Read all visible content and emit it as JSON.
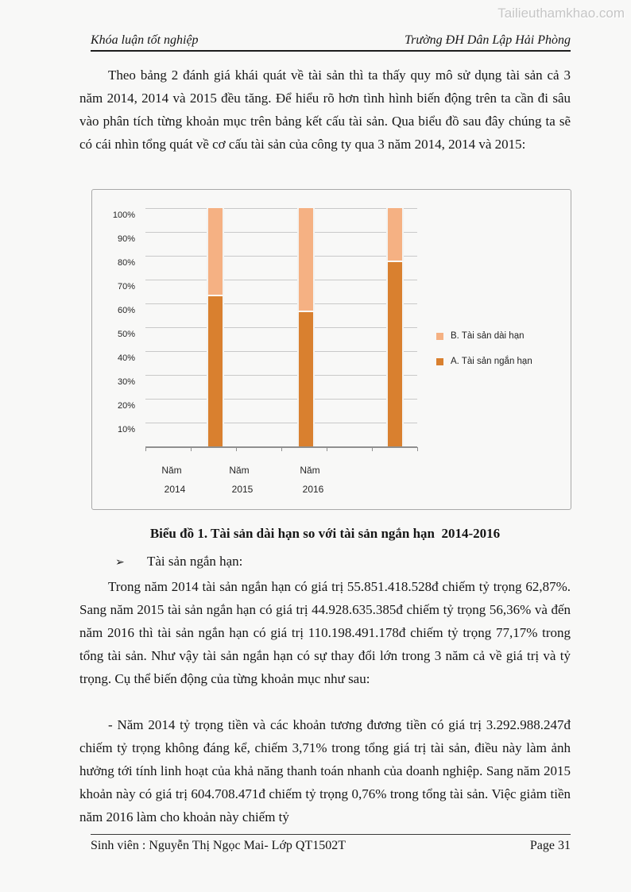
{
  "watermark": "Tailieuthamkhao.com",
  "header": {
    "left": "Khóa luận tốt nghiệp",
    "right": "Trường ĐH Dân Lập Hải Phòng"
  },
  "body": {
    "para_intro": "Theo bảng 2 đánh giá khái quát về tài sản thì ta thấy quy mô sử dụng tài sản cả 3 năm 2014, 2014 và 2015 đều tăng. Để hiểu rõ hơn tình hình biến động trên ta cần đi sâu vào phân tích từng khoản mục trên bảng kết cấu tài sản. Qua biểu đồ sau đây chúng ta sẽ có cái nhìn tổng quát về cơ cấu tài sản của công ty qua 3 năm 2014, 2014 và 2015:",
    "chart_caption": "Biểu đồ 1. Tài sản dài hạn so với tài sản ngắn hạn  2014-2016",
    "bullet_marker": "➢",
    "bullet_text": "Tài sản ngắn hạn:",
    "para_shortterm": "Trong năm 2014 tài sản ngắn hạn có giá trị 55.851.418.528đ chiếm tỷ trọng 62,87%. Sang năm 2015 tài sản ngắn hạn có giá trị 44.928.635.385đ chiếm tỷ trọng 56,36% và đến năm 2016 thì tài sản ngắn hạn có giá trị 110.198.491.178đ chiếm tỷ trọng 77,17% trong tổng tài sản. Như vậy tài sản ngắn hạn có sự thay đổi lớn trong 3 năm cả về giá trị và tỷ trọng. Cụ thể biến động của từng khoản mục như sau:",
    "para_cash": "- Năm 2014 tỷ trọng tiền và các khoản tương đương tiền có giá trị 3.292.988.247đ chiếm tỷ trọng không đáng kể, chiếm 3,71% trong tổng giá trị tài sản, điều này làm ảnh hưởng tới tính linh hoạt của khả năng thanh toán nhanh của doanh nghiệp. Sang năm 2015 khoản này có giá trị 604.708.471đ chiếm tỷ trọng 0,76% trong tổng tài sản. Việc giảm tiền năm 2016 làm cho khoản này chiếm tỷ"
  },
  "footer": {
    "left": "Sinh viên : Nguyễn Thị Ngọc Mai- Lớp QT1502T",
    "right": "Page 31"
  },
  "chart_data": {
    "type": "bar",
    "stacked": true,
    "stacked_100pct": true,
    "categories": [
      "Năm 2014",
      "Năm 2015",
      "Năm 2016"
    ],
    "series": [
      {
        "name": "A. Tài sản ngắn hạn",
        "color": "#d9802f",
        "values": [
          62.87,
          56.36,
          77.17
        ]
      },
      {
        "name": "B. Tài sản dài hạn",
        "color": "#f5b183",
        "values": [
          37.13,
          43.64,
          22.83
        ]
      }
    ],
    "y_ticks": [
      "100%",
      "90%",
      "80%",
      "70%",
      "60%",
      "50%",
      "40%",
      "30%",
      "20%",
      "10%"
    ],
    "ylim": [
      0,
      100
    ],
    "grid": true,
    "legend_position": "right",
    "legend_order": [
      "B. Tài sản dài hạn",
      "A. Tài sản ngắn hạn"
    ],
    "axis_label_color": "#262626",
    "gridline_color": "#c9c9c9"
  }
}
